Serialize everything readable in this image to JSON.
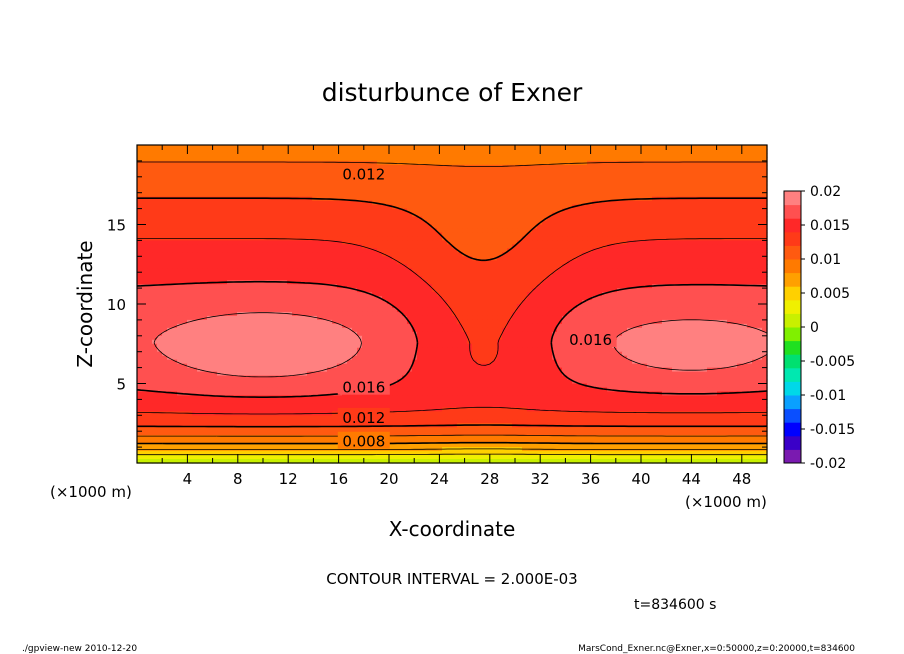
{
  "chart_data": {
    "type": "heatmap",
    "title": "disturbunce of Exner",
    "xlabel": "X-coordinate",
    "ylabel": "Z-coordinate",
    "x_unit_label": "(×1000 m)",
    "x_unit_label_right": "(×1000 m)",
    "xlim": [
      0,
      50
    ],
    "ylim": [
      0,
      20
    ],
    "x_ticks": [
      4,
      8,
      12,
      16,
      20,
      24,
      28,
      32,
      36,
      40,
      44,
      48
    ],
    "y_ticks": [
      5,
      10,
      15
    ],
    "x_tick_labels": [
      "4",
      "8",
      "12",
      "16",
      "20",
      "24",
      "28",
      "32",
      "36",
      "40",
      "44",
      "48"
    ],
    "y_tick_labels": [
      "5",
      "10",
      "15"
    ],
    "colorbar": {
      "labels": [
        "0.02",
        "0.015",
        "0.01",
        "0.005",
        "0",
        "-0.005",
        "-0.01",
        "-0.015",
        "-0.02"
      ],
      "min": -0.02,
      "max": 0.02,
      "step": 0.002,
      "colors": [
        "#7a1ab0",
        "#3a00c8",
        "#0000ff",
        "#0a4fff",
        "#0aa0ff",
        "#00d8e8",
        "#00e8b0",
        "#00e070",
        "#20e020",
        "#80f000",
        "#c8f000",
        "#f0f000",
        "#ffd000",
        "#ffa000",
        "#ff7a00",
        "#ff5a10",
        "#ff3a18",
        "#ff2828",
        "#ff5050",
        "#ff8080"
      ]
    },
    "contour_labels": [
      {
        "text": "0.012",
        "x": 18,
        "z": 18.2
      },
      {
        "text": "0.016",
        "x": 18,
        "z": 4.8
      },
      {
        "text": "0.016",
        "x": 36,
        "z": 7.8
      },
      {
        "text": "0.012",
        "x": 18,
        "z": 2.9
      },
      {
        "text": "0.008",
        "x": 18,
        "z": 1.4
      }
    ],
    "contour_interval": "CONTOUR INTERVAL = 2.000E-03",
    "time_label": "t=834600 s"
  },
  "footer": {
    "left": "./gpview-new  2010-12-20",
    "right": "MarsCond_Exner.nc@Exner,x=0:50000,z=0:20000,t=834600"
  }
}
